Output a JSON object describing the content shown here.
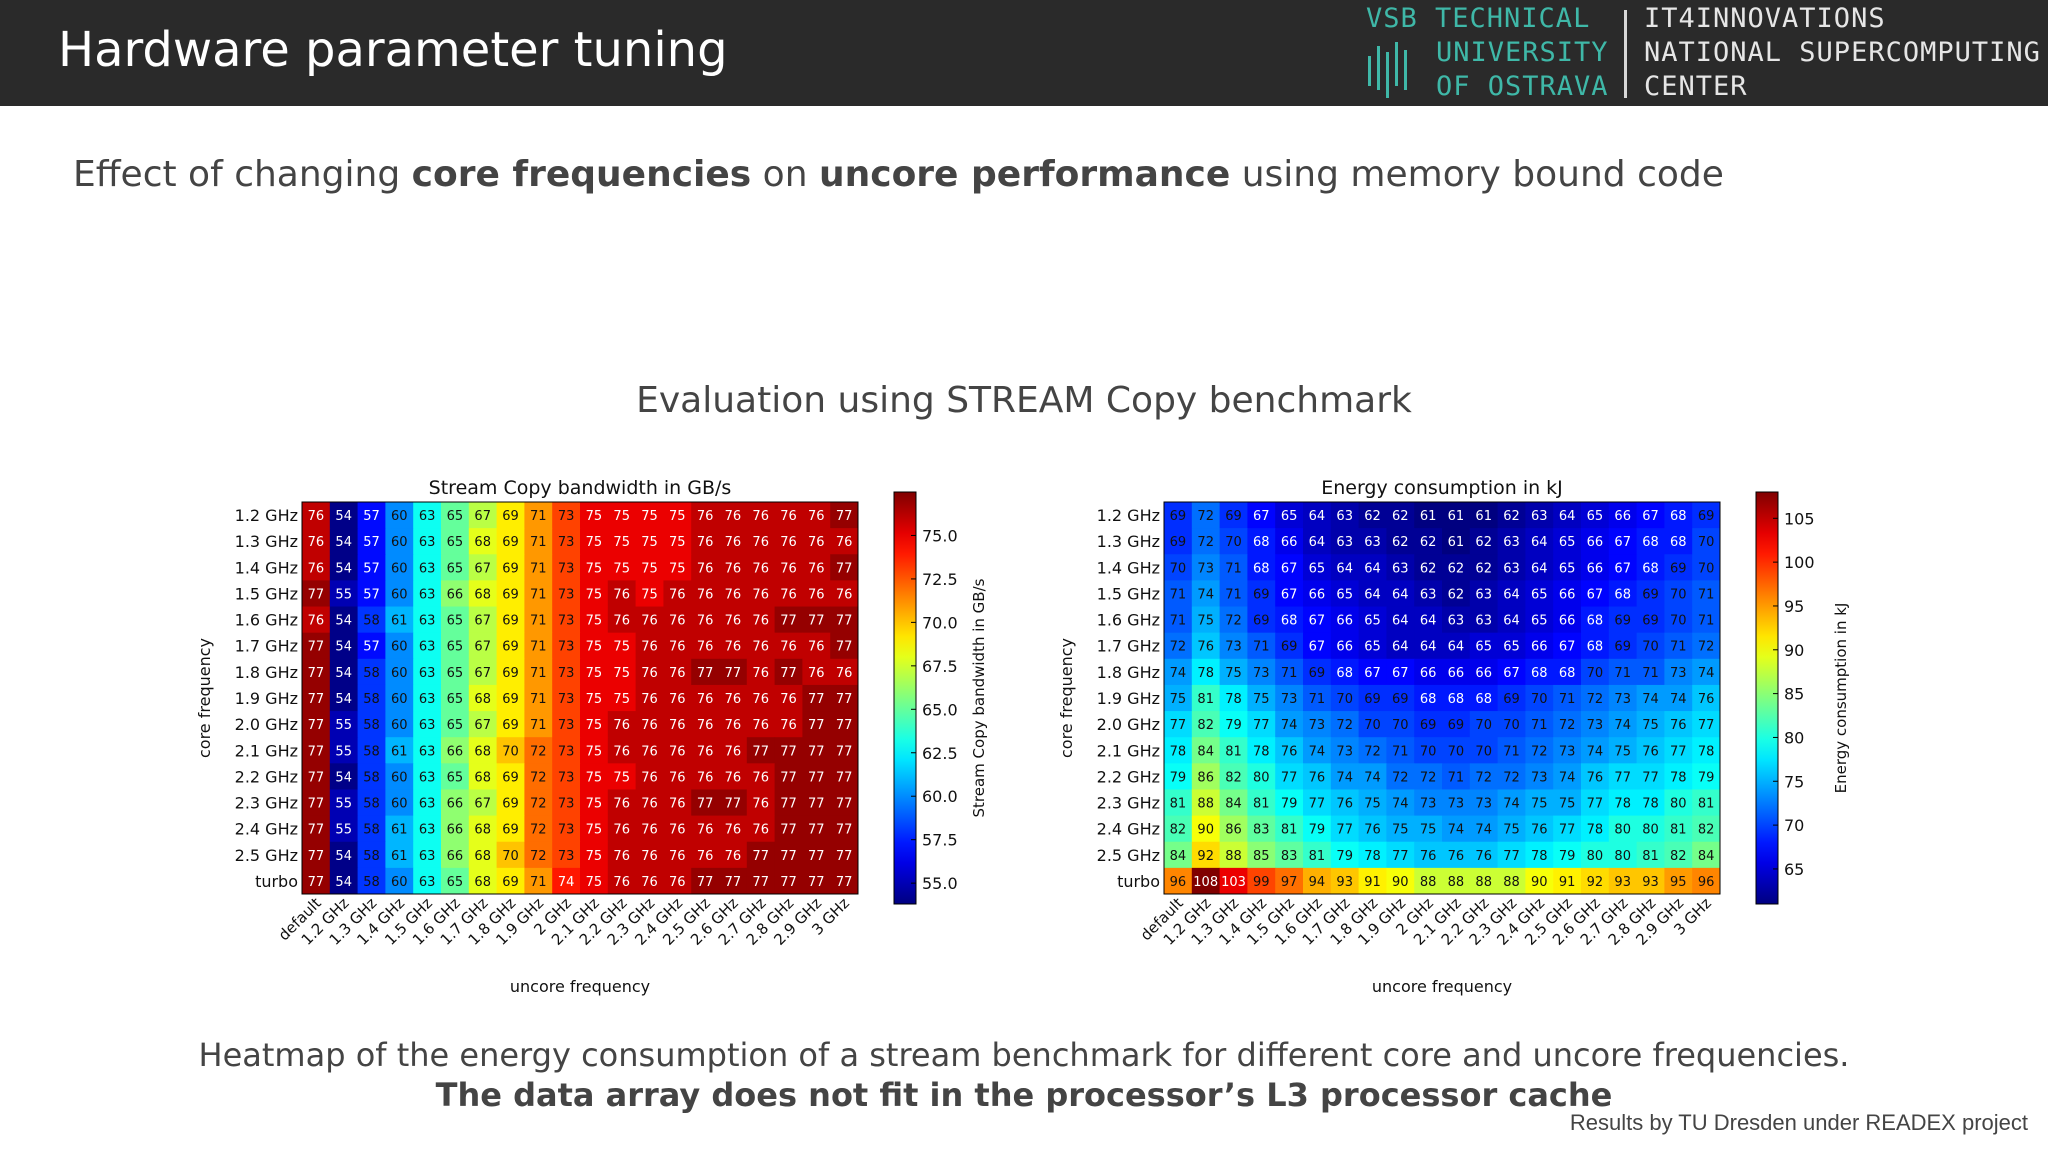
{
  "header": {
    "title": "Hardware parameter tuning",
    "logo_vsb": [
      "VSB TECHNICAL",
      "UNIVERSITY",
      "OF OSTRAVA"
    ],
    "logo_it4i": [
      "IT4INNOVATIONS",
      "NATIONAL SUPERCOMPUTING",
      "CENTER"
    ],
    "colors": {
      "bar": "#2a2a2a",
      "vsb": "#3fb8a8"
    }
  },
  "subtitle": {
    "p1": "Effect of changing ",
    "b1": "core frequencies",
    "p2": " on ",
    "b2": "uncore performance",
    "p3": " using memory bound code"
  },
  "eval_title": "Evaluation using STREAM Copy benchmark",
  "caption_line1": "Heatmap of the energy consumption of a stream benchmark for different core and uncore frequencies.",
  "caption_line2": "The data array does not fit in the processor’s L3 processor cache",
  "credit": "Results by TU Dresden under READEX project",
  "chart_data": [
    {
      "type": "heatmap",
      "title": "Stream Copy bandwidth in GB/s",
      "xlabel": "uncore frequency",
      "ylabel": "core frequency",
      "colorbar_label": "Stream Copy bandwidth in GB/s",
      "colorbar_range": [
        53.8,
        77.5
      ],
      "colorbar_ticks": [
        "55.0",
        "57.5",
        "60.0",
        "62.5",
        "65.0",
        "67.5",
        "70.0",
        "72.5",
        "75.0"
      ],
      "colormap": "jet",
      "x": [
        "default",
        "1.2 GHz",
        "1.3 GHz",
        "1.4 GHz",
        "1.5 GHz",
        "1.6 GHz",
        "1.7 GHz",
        "1.8 GHz",
        "1.9 GHz",
        "2 GHz",
        "2.1 GHz",
        "2.2 GHz",
        "2.3 GHz",
        "2.4 GHz",
        "2.5 GHz",
        "2.6 GHz",
        "2.7 GHz",
        "2.8 GHz",
        "2.9 GHz",
        "3 GHz"
      ],
      "y": [
        "1.2 GHz",
        "1.3 GHz",
        "1.4 GHz",
        "1.5 GHz",
        "1.6 GHz",
        "1.7 GHz",
        "1.8 GHz",
        "1.9 GHz",
        "2.0 GHz",
        "2.1 GHz",
        "2.2 GHz",
        "2.3 GHz",
        "2.4 GHz",
        "2.5 GHz",
        "turbo"
      ],
      "values": [
        [
          76,
          54,
          57,
          60,
          63,
          65,
          67,
          69,
          71,
          73,
          75,
          75,
          75,
          75,
          76,
          76,
          76,
          76,
          76,
          77
        ],
        [
          76,
          54,
          57,
          60,
          63,
          65,
          68,
          69,
          71,
          73,
          75,
          75,
          75,
          75,
          76,
          76,
          76,
          76,
          76,
          76
        ],
        [
          76,
          54,
          57,
          60,
          63,
          65,
          67,
          69,
          71,
          73,
          75,
          75,
          75,
          75,
          76,
          76,
          76,
          76,
          76,
          77
        ],
        [
          77,
          55,
          57,
          60,
          63,
          66,
          68,
          69,
          71,
          73,
          75,
          76,
          75,
          76,
          76,
          76,
          76,
          76,
          76,
          76
        ],
        [
          76,
          54,
          58,
          61,
          63,
          65,
          67,
          69,
          71,
          73,
          75,
          76,
          76,
          76,
          76,
          76,
          76,
          77,
          77,
          77
        ],
        [
          77,
          54,
          57,
          60,
          63,
          65,
          67,
          69,
          71,
          73,
          75,
          75,
          76,
          76,
          76,
          76,
          76,
          76,
          76,
          77
        ],
        [
          77,
          54,
          58,
          60,
          63,
          65,
          67,
          69,
          71,
          73,
          75,
          75,
          76,
          76,
          77,
          77,
          76,
          77,
          76,
          76
        ],
        [
          77,
          54,
          58,
          60,
          63,
          65,
          68,
          69,
          71,
          73,
          75,
          75,
          76,
          76,
          76,
          76,
          76,
          76,
          77,
          77
        ],
        [
          77,
          55,
          58,
          60,
          63,
          65,
          67,
          69,
          71,
          73,
          75,
          76,
          76,
          76,
          76,
          76,
          76,
          76,
          77,
          77
        ],
        [
          77,
          55,
          58,
          61,
          63,
          66,
          68,
          70,
          72,
          73,
          75,
          76,
          76,
          76,
          76,
          76,
          77,
          77,
          77,
          77
        ],
        [
          77,
          54,
          58,
          60,
          63,
          65,
          68,
          69,
          72,
          73,
          75,
          75,
          76,
          76,
          76,
          76,
          76,
          77,
          77,
          77
        ],
        [
          77,
          55,
          58,
          60,
          63,
          66,
          67,
          69,
          72,
          73,
          75,
          76,
          76,
          76,
          77,
          77,
          76,
          77,
          77,
          77
        ],
        [
          77,
          55,
          58,
          61,
          63,
          66,
          68,
          69,
          72,
          73,
          75,
          76,
          76,
          76,
          76,
          76,
          76,
          77,
          77,
          77
        ],
        [
          77,
          54,
          58,
          61,
          63,
          66,
          68,
          70,
          72,
          73,
          75,
          76,
          76,
          76,
          76,
          76,
          77,
          77,
          77,
          77
        ],
        [
          77,
          54,
          58,
          60,
          63,
          65,
          68,
          69,
          71,
          74,
          75,
          76,
          76,
          76,
          77,
          77,
          77,
          77,
          77,
          77
        ]
      ]
    },
    {
      "type": "heatmap",
      "title": "Energy consumption in kJ",
      "xlabel": "uncore frequency",
      "ylabel": "core frequency",
      "colorbar_label": "Energy consumption in kJ",
      "colorbar_range": [
        61,
        108
      ],
      "colorbar_ticks": [
        "65",
        "70",
        "75",
        "80",
        "85",
        "90",
        "95",
        "100",
        "105"
      ],
      "colormap": "jet",
      "x": [
        "default",
        "1.2 GHz",
        "1.3 GHz",
        "1.4 GHz",
        "1.5 GHz",
        "1.6 GHz",
        "1.7 GHz",
        "1.8 GHz",
        "1.9 GHz",
        "2 GHz",
        "2.1 GHz",
        "2.2 GHz",
        "2.3 GHz",
        "2.4 GHz",
        "2.5 GHz",
        "2.6 GHz",
        "2.7 GHz",
        "2.8 GHz",
        "2.9 GHz",
        "3 GHz"
      ],
      "y": [
        "1.2 GHz",
        "1.3 GHz",
        "1.4 GHz",
        "1.5 GHz",
        "1.6 GHz",
        "1.7 GHz",
        "1.8 GHz",
        "1.9 GHz",
        "2.0 GHz",
        "2.1 GHz",
        "2.2 GHz",
        "2.3 GHz",
        "2.4 GHz",
        "2.5 GHz",
        "turbo"
      ],
      "values": [
        [
          69,
          72,
          69,
          67,
          65,
          64,
          63,
          62,
          62,
          61,
          61,
          61,
          62,
          63,
          64,
          65,
          66,
          67,
          68,
          69
        ],
        [
          69,
          72,
          70,
          68,
          66,
          64,
          63,
          63,
          62,
          62,
          61,
          62,
          63,
          64,
          65,
          66,
          67,
          68,
          68,
          70
        ],
        [
          70,
          73,
          71,
          68,
          67,
          65,
          64,
          64,
          63,
          62,
          62,
          62,
          63,
          64,
          65,
          66,
          67,
          68,
          69,
          70
        ],
        [
          71,
          74,
          71,
          69,
          67,
          66,
          65,
          64,
          64,
          63,
          62,
          63,
          64,
          65,
          66,
          67,
          68,
          69,
          70,
          71
        ],
        [
          71,
          75,
          72,
          69,
          68,
          67,
          66,
          65,
          64,
          64,
          63,
          63,
          64,
          65,
          66,
          68,
          69,
          69,
          70,
          71
        ],
        [
          72,
          76,
          73,
          71,
          69,
          67,
          66,
          65,
          64,
          64,
          64,
          65,
          65,
          66,
          67,
          68,
          69,
          70,
          71,
          72
        ],
        [
          74,
          78,
          75,
          73,
          71,
          69,
          68,
          67,
          67,
          66,
          66,
          66,
          67,
          68,
          68,
          70,
          71,
          71,
          73,
          74
        ],
        [
          75,
          81,
          78,
          75,
          73,
          71,
          70,
          69,
          69,
          68,
          68,
          68,
          69,
          70,
          71,
          72,
          73,
          74,
          74,
          76
        ],
        [
          77,
          82,
          79,
          77,
          74,
          73,
          72,
          70,
          70,
          69,
          69,
          70,
          70,
          71,
          72,
          73,
          74,
          75,
          76,
          77
        ],
        [
          78,
          84,
          81,
          78,
          76,
          74,
          73,
          72,
          71,
          70,
          70,
          70,
          71,
          72,
          73,
          74,
          75,
          76,
          77,
          78
        ],
        [
          79,
          86,
          82,
          80,
          77,
          76,
          74,
          74,
          72,
          72,
          71,
          72,
          72,
          73,
          74,
          76,
          77,
          77,
          78,
          79
        ],
        [
          81,
          88,
          84,
          81,
          79,
          77,
          76,
          75,
          74,
          73,
          73,
          73,
          74,
          75,
          75,
          77,
          78,
          78,
          80,
          81
        ],
        [
          82,
          90,
          86,
          83,
          81,
          79,
          77,
          76,
          75,
          75,
          74,
          74,
          75,
          76,
          77,
          78,
          80,
          80,
          81,
          82
        ],
        [
          84,
          92,
          88,
          85,
          83,
          81,
          79,
          78,
          77,
          76,
          76,
          76,
          77,
          78,
          79,
          80,
          80,
          81,
          82,
          84
        ],
        [
          96,
          108,
          103,
          99,
          97,
          94,
          93,
          91,
          90,
          88,
          88,
          88,
          88,
          90,
          91,
          92,
          93,
          93,
          95,
          96
        ]
      ]
    }
  ]
}
